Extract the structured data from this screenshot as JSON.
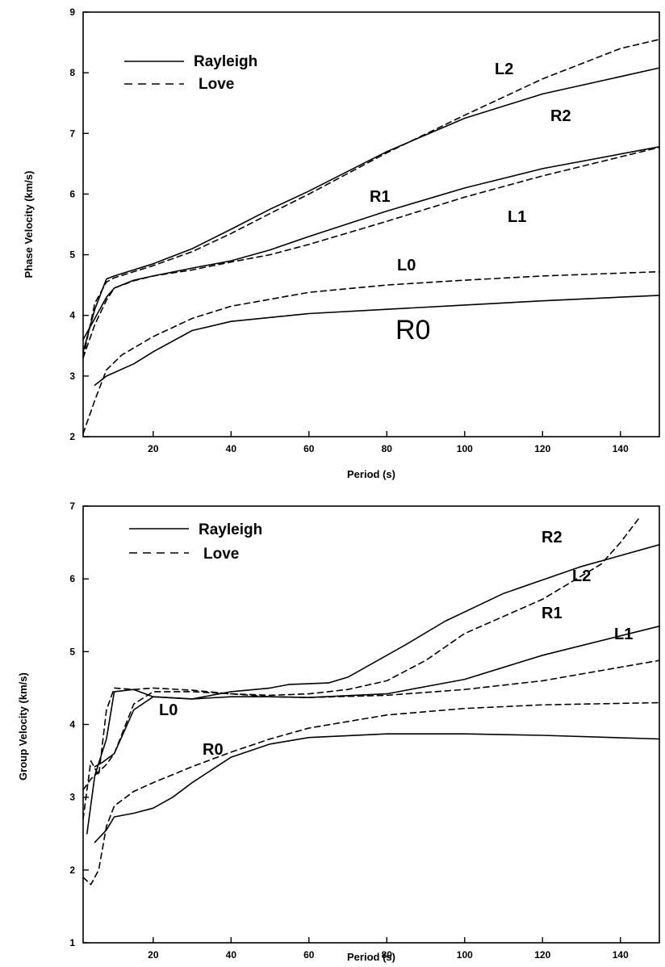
{
  "chart_data": [
    {
      "type": "line",
      "xlabel": "Period (s)",
      "ylabel": "Phase Velocity (km/s)",
      "xlim": [
        2,
        150
      ],
      "ylim": [
        2,
        9
      ],
      "xticks": [
        20,
        40,
        60,
        80,
        100,
        120,
        140
      ],
      "yticks": [
        2,
        3,
        4,
        5,
        6,
        7,
        8,
        9
      ],
      "grid": false,
      "legend": {
        "position": "top-left",
        "entries": [
          {
            "label": "Rayleigh",
            "style": "solid"
          },
          {
            "label": "Love",
            "style": "dashed"
          }
        ]
      },
      "series": [
        {
          "name": "R0",
          "style": "solid",
          "x": [
            5,
            8,
            15,
            20,
            30,
            40,
            60,
            80,
            100,
            120,
            150
          ],
          "y": [
            2.85,
            3.0,
            3.2,
            3.4,
            3.75,
            3.9,
            4.03,
            4.1,
            4.17,
            4.24,
            4.33
          ]
        },
        {
          "name": "L0",
          "style": "dashed",
          "x": [
            2,
            5,
            8,
            12,
            20,
            30,
            40,
            60,
            80,
            100,
            120,
            150
          ],
          "y": [
            2.05,
            2.6,
            3.1,
            3.35,
            3.65,
            3.95,
            4.15,
            4.38,
            4.5,
            4.58,
            4.65,
            4.72
          ]
        },
        {
          "name": "R1",
          "style": "solid",
          "x": [
            2,
            5,
            8,
            10,
            15,
            20,
            30,
            40,
            50,
            60,
            80,
            100,
            120,
            150
          ],
          "y": [
            3.6,
            3.95,
            4.3,
            4.45,
            4.58,
            4.65,
            4.78,
            4.9,
            5.08,
            5.3,
            5.72,
            6.1,
            6.42,
            6.78
          ]
        },
        {
          "name": "L1",
          "style": "dashed",
          "x": [
            2,
            5,
            8,
            10,
            15,
            20,
            30,
            40,
            50,
            60,
            80,
            100,
            120,
            150
          ],
          "y": [
            3.3,
            3.85,
            4.25,
            4.45,
            4.57,
            4.65,
            4.75,
            4.88,
            5.0,
            5.17,
            5.55,
            5.95,
            6.3,
            6.77
          ]
        },
        {
          "name": "R2",
          "style": "solid",
          "x": [
            2,
            5,
            8,
            10,
            20,
            30,
            40,
            50,
            60,
            80,
            100,
            120,
            150
          ],
          "y": [
            3.4,
            4.1,
            4.6,
            4.65,
            4.85,
            5.1,
            5.42,
            5.75,
            6.05,
            6.7,
            7.25,
            7.65,
            8.08
          ]
        },
        {
          "name": "L2",
          "style": "dashed",
          "x": [
            2,
            5,
            8,
            10,
            20,
            30,
            40,
            50,
            60,
            80,
            100,
            120,
            140,
            150
          ],
          "y": [
            3.3,
            4.2,
            4.55,
            4.62,
            4.82,
            5.05,
            5.35,
            5.68,
            6.0,
            6.68,
            7.3,
            7.9,
            8.4,
            8.55
          ]
        }
      ],
      "annotations": [
        "R0",
        "L0",
        "R1",
        "L1",
        "R2",
        "L2"
      ]
    },
    {
      "type": "line",
      "xlabel": "Period (s)",
      "ylabel": "Group Velocity (km/s)",
      "xlim": [
        2,
        150
      ],
      "ylim": [
        1,
        7
      ],
      "xticks": [
        20,
        40,
        60,
        80,
        100,
        120,
        140
      ],
      "yticks": [
        1,
        2,
        3,
        4,
        5,
        6,
        7
      ],
      "grid": false,
      "legend": {
        "position": "top-left",
        "entries": [
          {
            "label": "Rayleigh",
            "style": "solid"
          },
          {
            "label": "Love",
            "style": "dashed"
          }
        ]
      },
      "series": [
        {
          "name": "R0",
          "style": "solid",
          "x": [
            5,
            8,
            10,
            15,
            20,
            25,
            30,
            40,
            50,
            60,
            80,
            100,
            120,
            150
          ],
          "y": [
            2.38,
            2.55,
            2.73,
            2.78,
            2.85,
            3.0,
            3.2,
            3.55,
            3.73,
            3.82,
            3.87,
            3.87,
            3.85,
            3.8
          ]
        },
        {
          "name": "L0",
          "style": "dashed",
          "x": [
            2,
            4,
            6,
            8,
            10,
            15,
            20,
            30,
            40,
            50,
            60,
            80,
            100,
            120,
            150
          ],
          "y": [
            1.9,
            1.8,
            2.0,
            2.6,
            2.88,
            3.08,
            3.2,
            3.42,
            3.62,
            3.8,
            3.95,
            4.13,
            4.22,
            4.27,
            4.3
          ]
        },
        {
          "name": "R1",
          "style": "solid",
          "x": [
            5,
            7,
            8,
            10,
            15,
            20,
            30,
            40,
            50,
            60,
            80,
            100,
            120,
            150
          ],
          "y": [
            3.42,
            3.48,
            3.52,
            3.6,
            4.2,
            4.38,
            4.35,
            4.38,
            4.38,
            4.37,
            4.42,
            4.62,
            4.95,
            5.35
          ]
        },
        {
          "name": "L1",
          "style": "dashed",
          "x": [
            2,
            4,
            6,
            8,
            10,
            15,
            20,
            30,
            40,
            50,
            60,
            80,
            100,
            120,
            150
          ],
          "y": [
            3.1,
            3.25,
            3.35,
            3.45,
            3.6,
            4.28,
            4.45,
            4.45,
            4.42,
            4.38,
            4.37,
            4.4,
            4.48,
            4.6,
            4.88
          ]
        },
        {
          "name": "R2",
          "style": "solid",
          "x": [
            3,
            5,
            8,
            10,
            15,
            20,
            30,
            40,
            50,
            55,
            65,
            70,
            75,
            85,
            95,
            110,
            130,
            150
          ],
          "y": [
            2.5,
            3.3,
            3.8,
            4.45,
            4.48,
            4.38,
            4.35,
            4.45,
            4.5,
            4.55,
            4.57,
            4.65,
            4.8,
            5.1,
            5.42,
            5.8,
            6.17,
            6.47
          ]
        },
        {
          "name": "L2",
          "style": "dashed",
          "x": [
            2,
            4,
            6,
            8,
            10,
            15,
            20,
            30,
            40,
            50,
            60,
            70,
            80,
            90,
            100,
            120,
            135,
            140,
            145
          ],
          "y": [
            2.7,
            3.5,
            3.3,
            4.2,
            4.5,
            4.48,
            4.5,
            4.47,
            4.42,
            4.4,
            4.42,
            4.48,
            4.6,
            4.88,
            5.25,
            5.72,
            6.2,
            6.5,
            6.85
          ]
        }
      ],
      "annotations": [
        "L0",
        "R0",
        "R1",
        "L1",
        "R2",
        "L2"
      ]
    }
  ]
}
